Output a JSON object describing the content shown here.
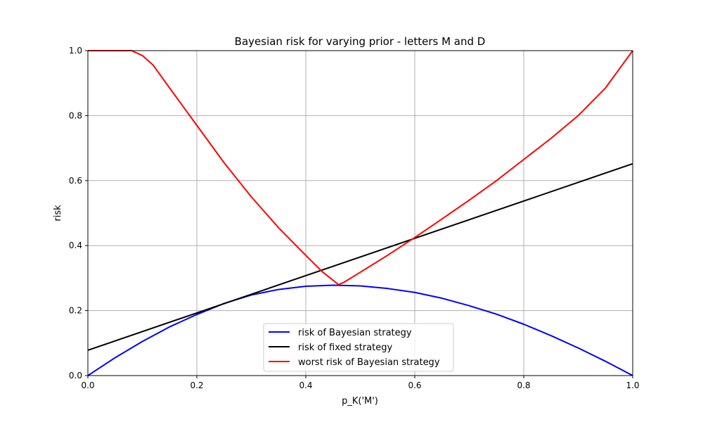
{
  "chart_data": {
    "type": "line",
    "title": "Bayesian risk for varying prior - letters M and D",
    "xlabel": "p_K('M')",
    "ylabel": "risk",
    "xlim": [
      0.0,
      1.0
    ],
    "ylim": [
      0.0,
      1.0
    ],
    "xticks": [
      "0.0",
      "0.2",
      "0.4",
      "0.6",
      "0.8",
      "1.0"
    ],
    "yticks": [
      "0.0",
      "0.2",
      "0.4",
      "0.6",
      "0.8",
      "1.0"
    ],
    "grid": true,
    "legend_position": "lower-center",
    "series": [
      {
        "name": "risk of Bayesian strategy",
        "color": "#0000ff",
        "x": [
          0.0,
          0.05,
          0.1,
          0.15,
          0.2,
          0.25,
          0.3,
          0.35,
          0.4,
          0.45,
          0.5,
          0.55,
          0.6,
          0.65,
          0.7,
          0.75,
          0.8,
          0.85,
          0.9,
          0.95,
          1.0
        ],
        "y": [
          0.0,
          0.055,
          0.105,
          0.15,
          0.188,
          0.222,
          0.248,
          0.265,
          0.275,
          0.278,
          0.276,
          0.268,
          0.256,
          0.238,
          0.215,
          0.189,
          0.158,
          0.123,
          0.085,
          0.044,
          0.0
        ]
      },
      {
        "name": "risk of fixed strategy",
        "color": "#000000",
        "x": [
          0.0,
          1.0
        ],
        "y": [
          0.078,
          0.652
        ]
      },
      {
        "name": "worst risk of Bayesian strategy",
        "color": "#ff0000",
        "x": [
          0.0,
          0.05,
          0.08,
          0.1,
          0.12,
          0.15,
          0.2,
          0.25,
          0.3,
          0.35,
          0.4,
          0.43,
          0.46,
          0.47,
          0.5,
          0.55,
          0.6,
          0.65,
          0.7,
          0.75,
          0.8,
          0.85,
          0.9,
          0.95,
          1.0
        ],
        "y": [
          1.0,
          1.0,
          1.0,
          0.985,
          0.955,
          0.885,
          0.77,
          0.655,
          0.55,
          0.455,
          0.37,
          0.32,
          0.28,
          0.287,
          0.318,
          0.37,
          0.425,
          0.482,
          0.54,
          0.6,
          0.665,
          0.73,
          0.8,
          0.885,
          1.0
        ]
      }
    ]
  }
}
